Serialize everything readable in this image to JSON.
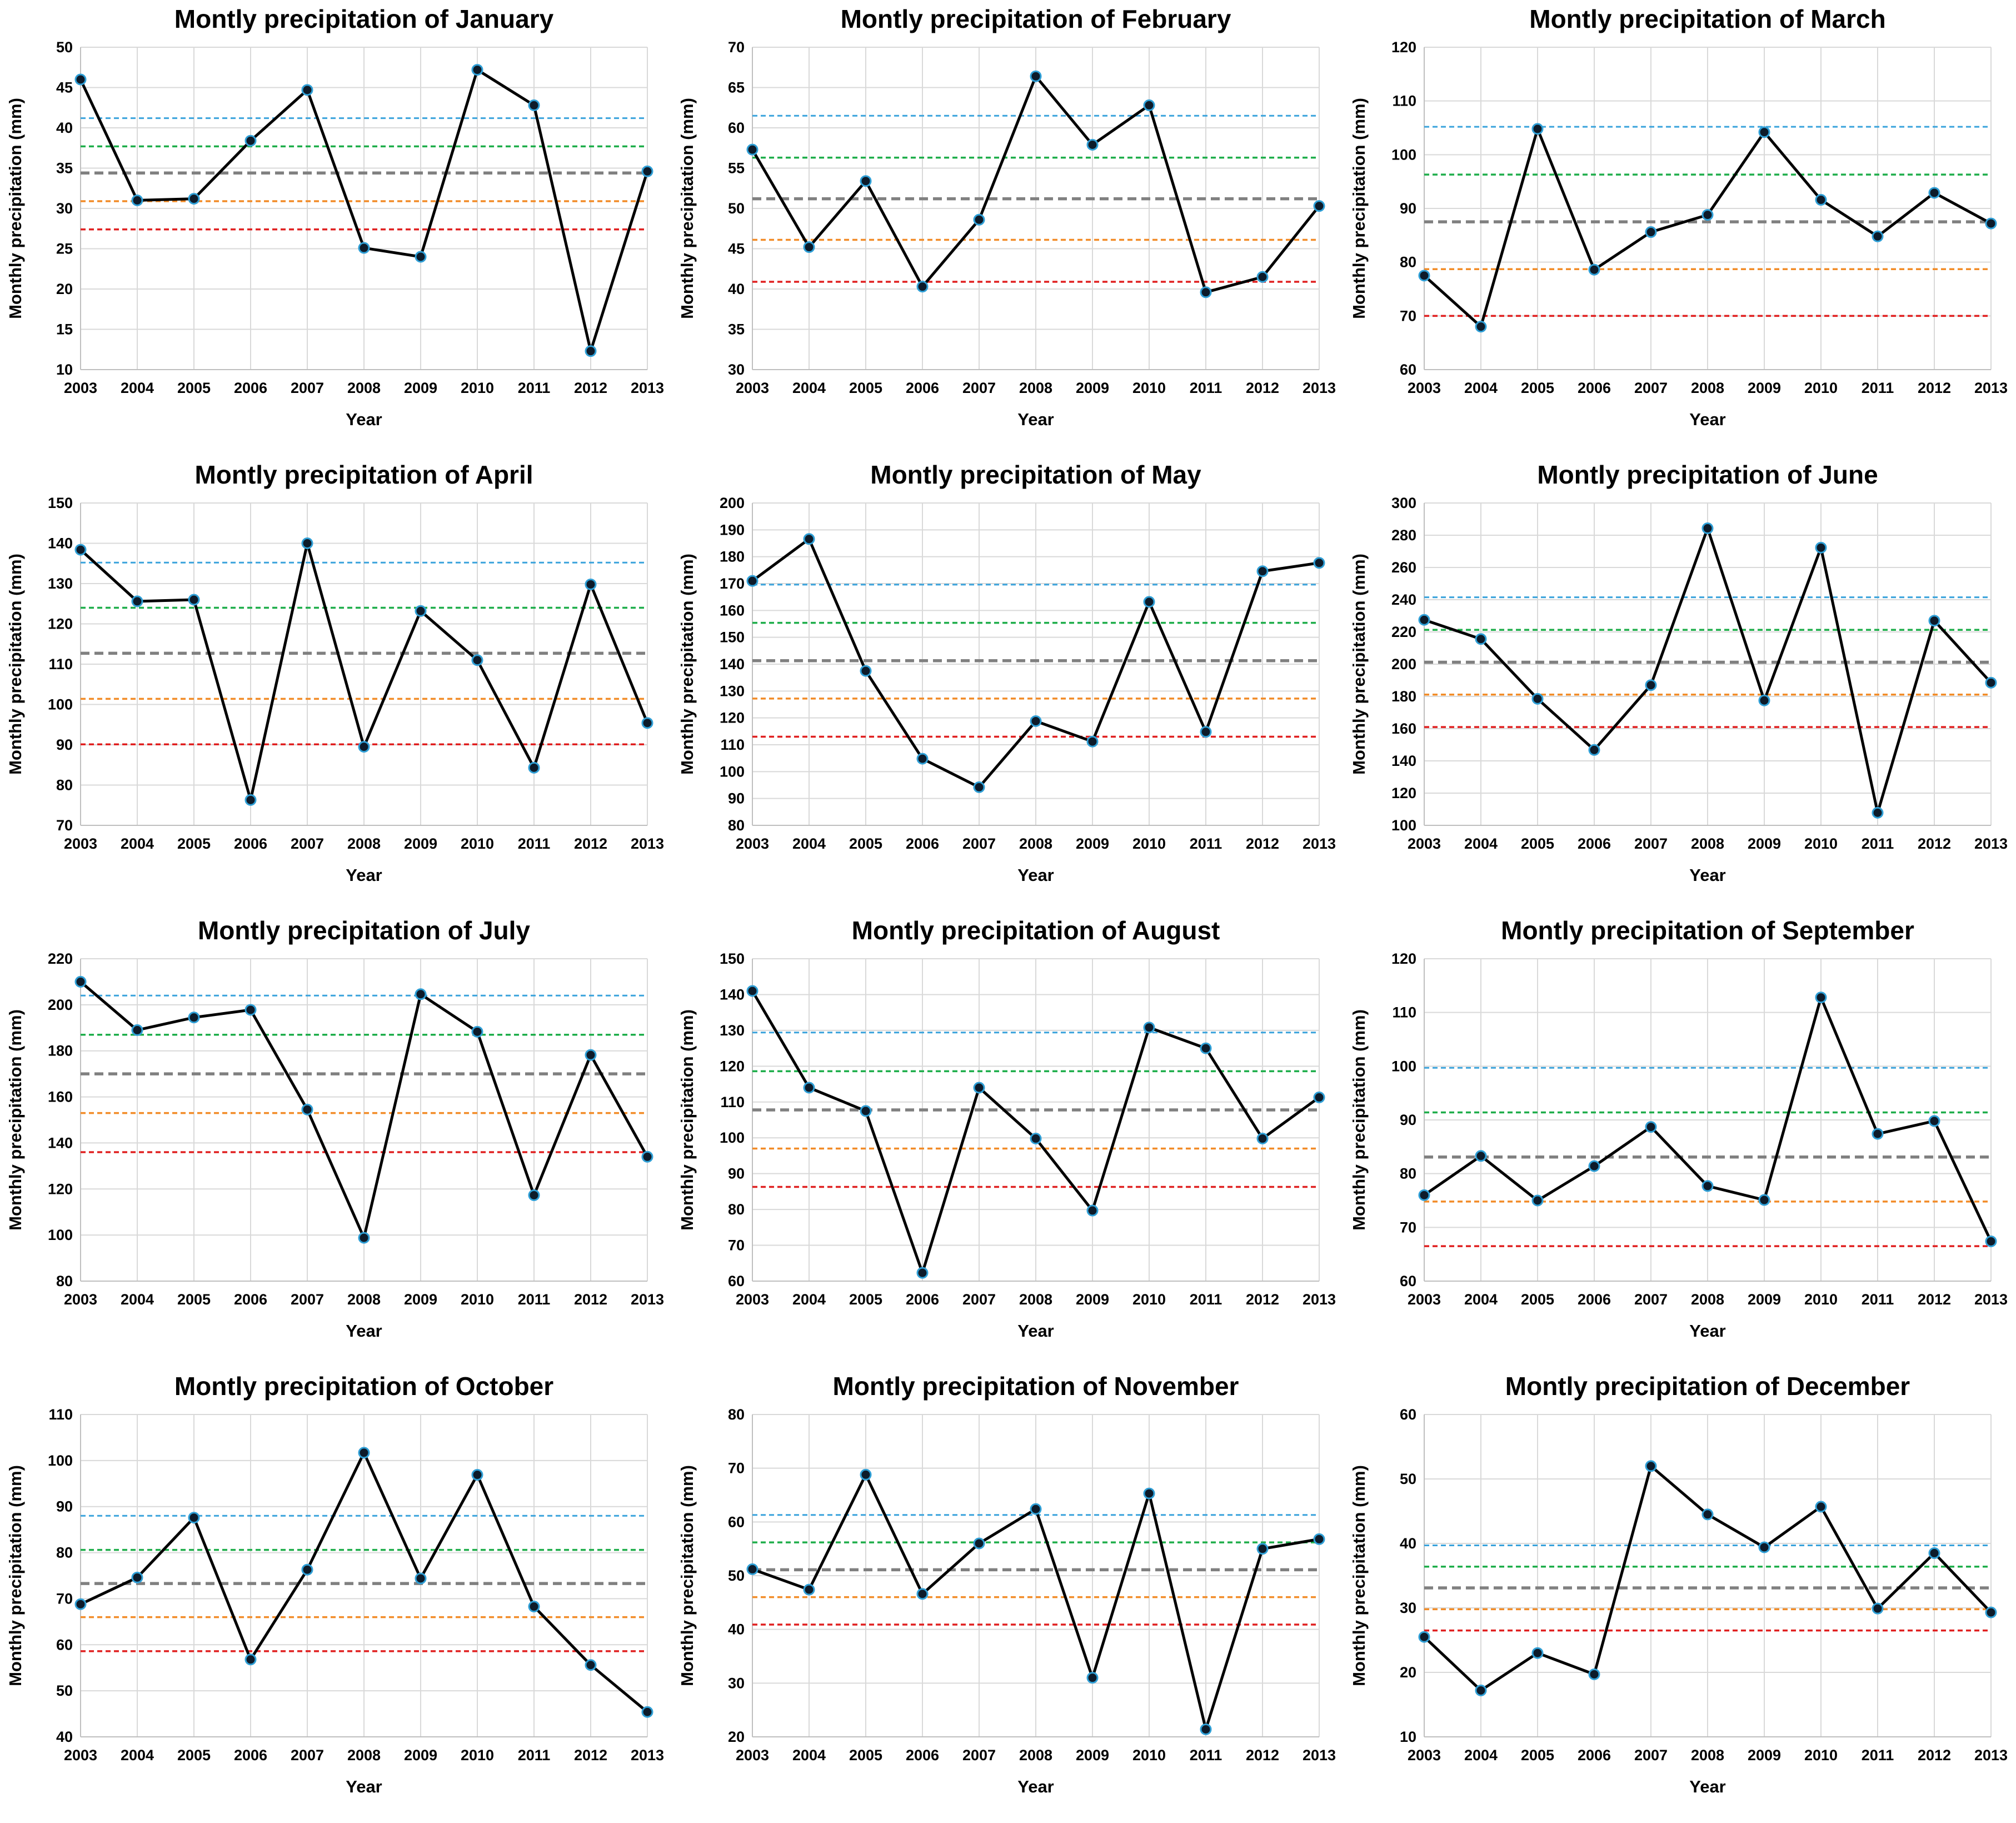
{
  "colors": {
    "line": "#000000",
    "marker_fill": "#0d1b2a",
    "marker_edge": "#2f9fd6",
    "grid": "#d9d9d9",
    "ref_blue": "#3aa3dc",
    "ref_green": "#1fae4b",
    "ref_gray": "#808080",
    "ref_orange": "#f28c28",
    "ref_red": "#e02020"
  },
  "chart_data": [
    {
      "type": "line",
      "title": "Montly precipitation of January",
      "xlabel": "Year",
      "ylabel": "Monthly precipitation (mm)",
      "x": [
        "2003",
        "2004",
        "2005",
        "2006",
        "2007",
        "2008",
        "2009",
        "2010",
        "2011",
        "2012",
        "2013"
      ],
      "values": [
        46,
        31,
        31.2,
        38.4,
        44.7,
        25.1,
        24,
        47.2,
        42.8,
        12.3,
        34.6
      ],
      "ylim": [
        10,
        50
      ],
      "yticks": [
        "10",
        "15",
        "20",
        "25",
        "30",
        "35",
        "40",
        "45",
        "50"
      ],
      "reference_lines": {
        "blue": 41.2,
        "green": 37.7,
        "gray": 34.4,
        "orange": 30.9,
        "red": 27.4
      }
    },
    {
      "type": "line",
      "title": "Montly precipitation of February",
      "xlabel": "Year",
      "ylabel": "Monthly precipitation (mm)",
      "x": [
        "2003",
        "2004",
        "2005",
        "2006",
        "2007",
        "2008",
        "2009",
        "2010",
        "2011",
        "2012",
        "2013"
      ],
      "values": [
        57.3,
        45.2,
        53.4,
        40.3,
        48.6,
        66.4,
        57.9,
        62.8,
        39.6,
        41.5,
        50.3
      ],
      "ylim": [
        30,
        70
      ],
      "yticks": [
        "30",
        "35",
        "40",
        "45",
        "50",
        "55",
        "60",
        "65",
        "70"
      ],
      "reference_lines": {
        "blue": 61.5,
        "green": 56.3,
        "gray": 51.2,
        "orange": 46.1,
        "red": 40.9
      }
    },
    {
      "type": "line",
      "title": "Montly precipitation of March",
      "xlabel": "Year",
      "ylabel": "Monthly precipitation (mm)",
      "x": [
        "2003",
        "2004",
        "2005",
        "2006",
        "2007",
        "2008",
        "2009",
        "2010",
        "2011",
        "2012",
        "2013"
      ],
      "values": [
        77.5,
        68,
        104.8,
        78.6,
        85.6,
        88.8,
        104.2,
        91.6,
        84.8,
        92.9,
        87.2
      ],
      "ylim": [
        60,
        120
      ],
      "yticks": [
        "60",
        "70",
        "80",
        "90",
        "100",
        "110",
        "120"
      ],
      "reference_lines": {
        "blue": 105.2,
        "green": 96.3,
        "gray": 87.5,
        "orange": 78.7,
        "red": 70
      }
    },
    {
      "type": "line",
      "title": "Montly precipitation of April",
      "xlabel": "Year",
      "ylabel": "Monthly precipitation (mm)",
      "x": [
        "2003",
        "2004",
        "2005",
        "2006",
        "2007",
        "2008",
        "2009",
        "2010",
        "2011",
        "2012",
        "2013"
      ],
      "values": [
        138.4,
        125.6,
        126,
        76.3,
        140,
        89.5,
        123.2,
        111,
        84.3,
        129.8,
        95.4
      ],
      "ylim": [
        70,
        150
      ],
      "yticks": [
        "70",
        "80",
        "90",
        "100",
        "110",
        "120",
        "130",
        "140",
        "150"
      ],
      "reference_lines": {
        "blue": 135.2,
        "green": 124,
        "gray": 112.7,
        "orange": 101.4,
        "red": 90.1
      }
    },
    {
      "type": "line",
      "title": "Montly precipitation of May",
      "xlabel": "Year",
      "ylabel": "Monthly precipitation (mm)",
      "x": [
        "2003",
        "2004",
        "2005",
        "2006",
        "2007",
        "2008",
        "2009",
        "2010",
        "2011",
        "2012",
        "2013"
      ],
      "values": [
        171,
        186.6,
        137.5,
        104.8,
        94.2,
        118.8,
        111.2,
        163.2,
        114.8,
        174.6,
        177.7
      ],
      "ylim": [
        80,
        200
      ],
      "yticks": [
        "80",
        "90",
        "100",
        "110",
        "120",
        "130",
        "140",
        "150",
        "160",
        "170",
        "180",
        "190",
        "200"
      ],
      "reference_lines": {
        "blue": 169.6,
        "green": 155.4,
        "gray": 141.3,
        "orange": 127.2,
        "red": 113
      }
    },
    {
      "type": "line",
      "title": "Montly precipitation of June",
      "xlabel": "Year",
      "ylabel": "Monthly precipitation (mm)",
      "x": [
        "2003",
        "2004",
        "2005",
        "2006",
        "2007",
        "2008",
        "2009",
        "2010",
        "2011",
        "2012",
        "2013"
      ],
      "values": [
        227.5,
        215.6,
        178.5,
        146.8,
        187,
        284.3,
        177.5,
        272.3,
        107.8,
        227,
        188.5
      ],
      "ylim": [
        100,
        300
      ],
      "yticks": [
        "100",
        "120",
        "140",
        "160",
        "180",
        "200",
        "220",
        "240",
        "260",
        "280",
        "300"
      ],
      "reference_lines": {
        "blue": 241.5,
        "green": 221.3,
        "gray": 201.2,
        "orange": 181.1,
        "red": 161
      }
    },
    {
      "type": "line",
      "title": "Montly precipitation of July",
      "xlabel": "Year",
      "ylabel": "Monthly precipitation (mm)",
      "x": [
        "2003",
        "2004",
        "2005",
        "2006",
        "2007",
        "2008",
        "2009",
        "2010",
        "2011",
        "2012",
        "2013"
      ],
      "values": [
        210,
        189,
        194.5,
        197.8,
        154.5,
        98.8,
        204.6,
        188.3,
        117.3,
        178.2,
        134
      ],
      "ylim": [
        80,
        220
      ],
      "yticks": [
        "80",
        "100",
        "120",
        "140",
        "160",
        "180",
        "200",
        "220"
      ],
      "reference_lines": {
        "blue": 204,
        "green": 187,
        "gray": 170,
        "orange": 153,
        "red": 136
      }
    },
    {
      "type": "line",
      "title": "Montly precipitation of August",
      "xlabel": "Year",
      "ylabel": "Monthly precipitation (mm)",
      "x": [
        "2003",
        "2004",
        "2005",
        "2006",
        "2007",
        "2008",
        "2009",
        "2010",
        "2011",
        "2012",
        "2013"
      ],
      "values": [
        141,
        114,
        107.5,
        62.3,
        114,
        99.8,
        79.7,
        130.8,
        125,
        99.8,
        111.3
      ],
      "ylim": [
        60,
        150
      ],
      "yticks": [
        "60",
        "70",
        "80",
        "90",
        "100",
        "110",
        "120",
        "130",
        "140",
        "150"
      ],
      "reference_lines": {
        "blue": 129.4,
        "green": 118.6,
        "gray": 107.8,
        "orange": 97,
        "red": 86.3
      }
    },
    {
      "type": "line",
      "title": "Montly precipitation of September",
      "xlabel": "Year",
      "ylabel": "Monthly precipitation (mm)",
      "x": [
        "2003",
        "2004",
        "2005",
        "2006",
        "2007",
        "2008",
        "2009",
        "2010",
        "2011",
        "2012",
        "2013"
      ],
      "values": [
        76,
        83.3,
        75,
        81.4,
        88.7,
        77.7,
        75.1,
        112.8,
        87.4,
        89.8,
        67.4
      ],
      "ylim": [
        60,
        120
      ],
      "yticks": [
        "60",
        "70",
        "80",
        "90",
        "100",
        "110",
        "120"
      ],
      "reference_lines": {
        "blue": 99.7,
        "green": 91.4,
        "gray": 83.1,
        "orange": 74.8,
        "red": 66.5
      }
    },
    {
      "type": "line",
      "title": "Montly precipitation of October",
      "xlabel": "Year",
      "ylabel": "Monthly precipitation (mm)",
      "x": [
        "2003",
        "2004",
        "2005",
        "2006",
        "2007",
        "2008",
        "2009",
        "2010",
        "2011",
        "2012",
        "2013"
      ],
      "values": [
        68.8,
        74.6,
        87.6,
        56.8,
        76.3,
        101.7,
        74.4,
        96.9,
        68.3,
        55.6,
        45.4
      ],
      "ylim": [
        40,
        110
      ],
      "yticks": [
        "40",
        "50",
        "60",
        "70",
        "80",
        "90",
        "100",
        "110"
      ],
      "reference_lines": {
        "blue": 88,
        "green": 80.6,
        "gray": 73.3,
        "orange": 66,
        "red": 58.6
      }
    },
    {
      "type": "line",
      "title": "Montly precipitation of November",
      "xlabel": "Year",
      "ylabel": "Monthly precipitation (mm)",
      "x": [
        "2003",
        "2004",
        "2005",
        "2006",
        "2007",
        "2008",
        "2009",
        "2010",
        "2011",
        "2012",
        "2013"
      ],
      "values": [
        51.2,
        47.4,
        68.8,
        46.6,
        56,
        62.4,
        31,
        65.3,
        21.4,
        55,
        56.8
      ],
      "ylim": [
        20,
        80
      ],
      "yticks": [
        "20",
        "30",
        "40",
        "50",
        "60",
        "70",
        "80"
      ],
      "reference_lines": {
        "blue": 61.3,
        "green": 56.2,
        "gray": 51.1,
        "orange": 46,
        "red": 40.9
      }
    },
    {
      "type": "line",
      "title": "Montly precipitation of December",
      "xlabel": "Year",
      "ylabel": "Monthly precipitation (mm)",
      "x": [
        "2003",
        "2004",
        "2005",
        "2006",
        "2007",
        "2008",
        "2009",
        "2010",
        "2011",
        "2012",
        "2013"
      ],
      "values": [
        25.5,
        17.2,
        23,
        19.7,
        52,
        44.5,
        39.4,
        45.7,
        29.9,
        38.5,
        29.3
      ],
      "ylim": [
        10,
        60
      ],
      "yticks": [
        "10",
        "20",
        "30",
        "40",
        "50",
        "60"
      ],
      "reference_lines": {
        "blue": 39.7,
        "green": 36.4,
        "gray": 33.1,
        "orange": 29.8,
        "red": 26.5
      }
    }
  ]
}
